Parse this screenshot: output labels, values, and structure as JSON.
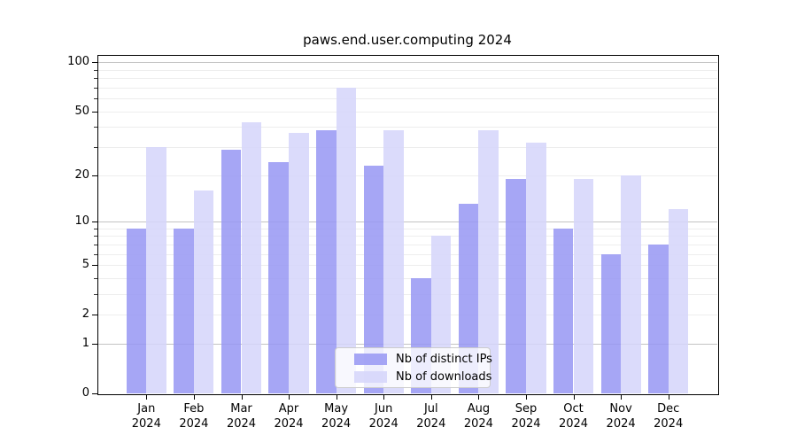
{
  "title": "paws.end.user.computing 2024",
  "legend": {
    "items": [
      {
        "label": "Nb of distinct IPs",
        "color": "rgba(151,151,243,0.85)"
      },
      {
        "label": "Nb of downloads",
        "color": "rgba(213,213,250,0.85)"
      }
    ],
    "position": "lower center"
  },
  "colors": {
    "bar_distinct_ips": "rgba(151,151,243,0.85)",
    "bar_downloads": "rgba(213,213,250,0.85)",
    "gridline_decade": "#c3c3c3",
    "gridline_minor": "#ededed",
    "spine": "#000000",
    "background": "#ffffff"
  },
  "chart_data": {
    "type": "bar",
    "title": "paws.end.user.computing 2024",
    "categories": [
      "Jan",
      "Feb",
      "Mar",
      "Apr",
      "May",
      "Jun",
      "Jul",
      "Aug",
      "Sep",
      "Oct",
      "Nov",
      "Dec"
    ],
    "year": "2024",
    "series": [
      {
        "name": "Nb of distinct IPs",
        "color": "rgba(151,151,243,0.85)",
        "values": [
          9,
          9,
          29,
          24,
          38,
          23,
          4,
          13,
          19,
          9,
          6,
          7
        ]
      },
      {
        "name": "Nb of downloads",
        "color": "rgba(213,213,250,0.85)",
        "values": [
          30,
          16,
          43,
          37,
          70,
          38,
          8,
          38,
          32,
          19,
          20,
          12
        ]
      }
    ],
    "xlabel": "",
    "ylabel": "",
    "y_scale": "log10(1+v)",
    "y_major_ticks": [
      0,
      1,
      2,
      5,
      10,
      20,
      50,
      100
    ],
    "y_minor_ticks": [
      3,
      4,
      6,
      7,
      8,
      9,
      30,
      40,
      60,
      70,
      80,
      90
    ],
    "decade_gridlines": [
      1,
      10,
      100
    ],
    "ylim": [
      0,
      111
    ],
    "grid": true,
    "legend_position": "lower center"
  }
}
